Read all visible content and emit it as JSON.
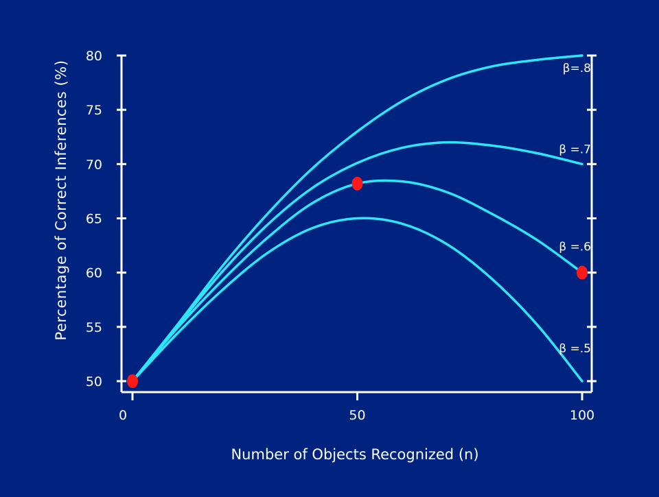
{
  "chart_data": {
    "type": "line",
    "title": "",
    "xlabel": "Number of Objects Recognized (n)",
    "ylabel": "Percentage of Correct Inferences (%)",
    "xlim": [
      0,
      100
    ],
    "ylim": [
      50,
      80
    ],
    "x_ticks": [
      0,
      50,
      100
    ],
    "y_ticks": [
      50,
      55,
      60,
      65,
      70,
      75,
      80
    ],
    "grid": false,
    "colors": {
      "background": "#00237f",
      "curve": "#2ee6ff",
      "axis": "#ffffff",
      "marker": "#ff1a1a"
    },
    "x": [
      0,
      10,
      20,
      30,
      40,
      50,
      60,
      70,
      80,
      90,
      100
    ],
    "series": [
      {
        "name": "β=.8",
        "values": [
          50,
          55.2,
          60.6,
          65.4,
          69.6,
          73,
          75.8,
          77.8,
          79,
          79.6,
          80
        ]
      },
      {
        "name": "β =.7",
        "values": [
          50,
          55.1,
          60.1,
          64.4,
          67.8,
          70.1,
          71.5,
          72,
          71.7,
          71,
          70
        ]
      },
      {
        "name": "β =.6",
        "values": [
          50,
          54.9,
          59.3,
          63.2,
          66.4,
          68.2,
          68.4,
          67.4,
          65.4,
          63,
          60
        ]
      },
      {
        "name": "β =.5",
        "values": [
          50,
          54.4,
          58.4,
          61.8,
          64.1,
          65,
          64.5,
          62.6,
          59.4,
          55.2,
          50
        ]
      }
    ],
    "markers": [
      {
        "x": 0,
        "y": 50
      },
      {
        "x": 50,
        "y": 68.2
      },
      {
        "x": 100,
        "y": 60
      }
    ]
  }
}
